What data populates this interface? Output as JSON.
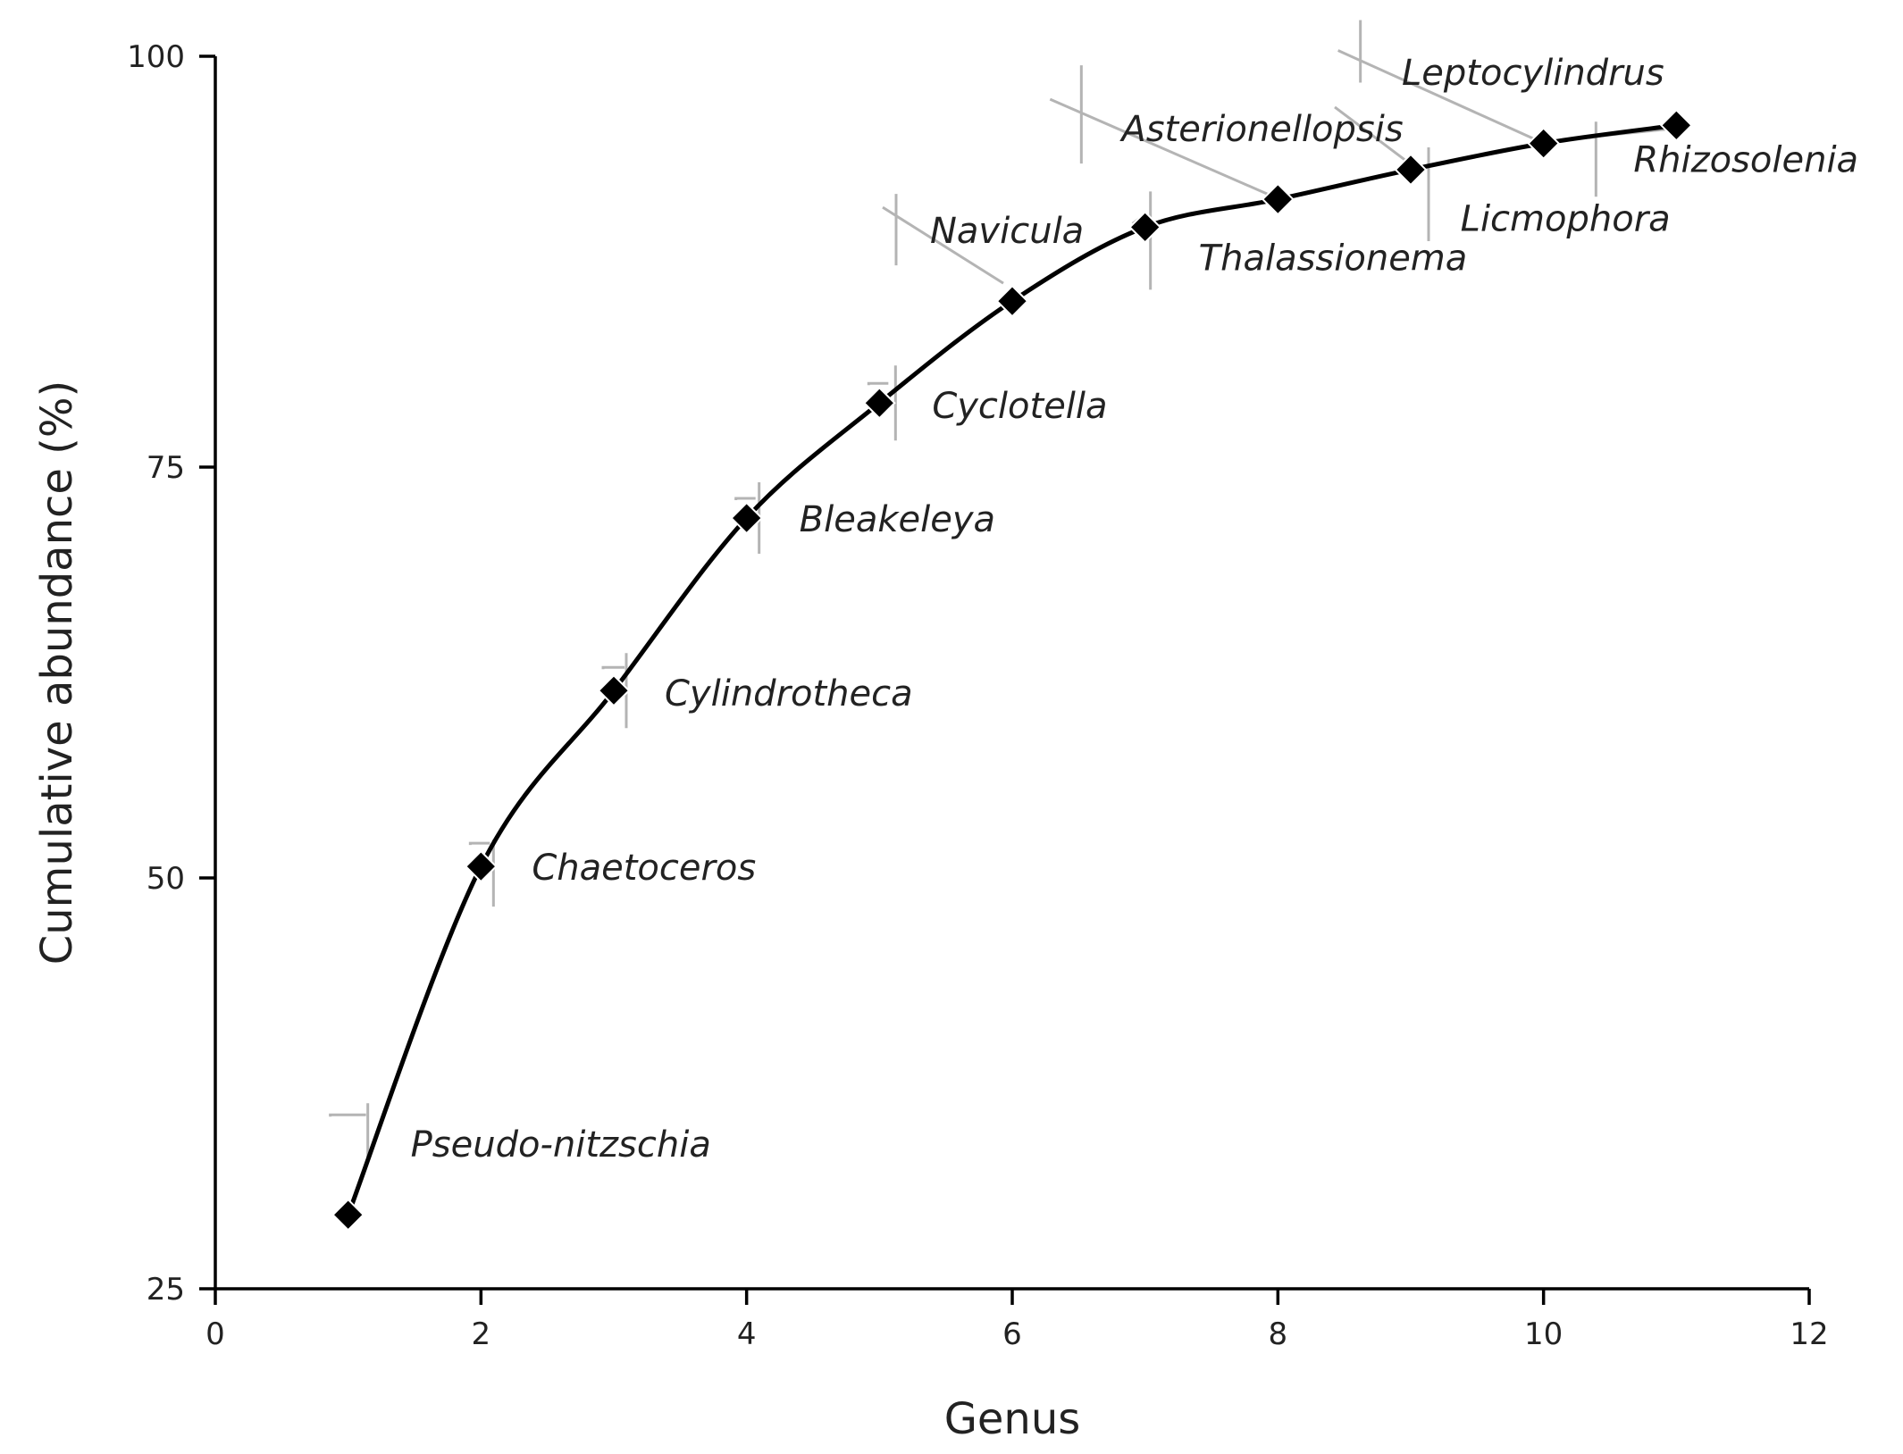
{
  "chart_data": {
    "type": "line",
    "xlabel": "Genus",
    "ylabel": "Cumulative abundance (%)",
    "xlim": [
      0,
      12
    ],
    "ylim": [
      25,
      100
    ],
    "xticks": [
      0,
      2,
      4,
      6,
      8,
      10,
      12
    ],
    "yticks": [
      25,
      50,
      75,
      100
    ],
    "smoothed_line": true,
    "marker": "diamond",
    "color": "#000000",
    "label_color": "#222222",
    "leader_color": "#b4b4b4",
    "x": [
      1,
      2,
      3,
      4,
      5,
      6,
      7,
      8,
      9,
      10,
      11
    ],
    "y": [
      29.5,
      50.7,
      61.4,
      71.9,
      78.9,
      85.1,
      89.6,
      91.3,
      93.1,
      94.7,
      95.8
    ],
    "labels": [
      "Pseudo-nitzschia",
      "Chaetoceros",
      "Cylindrotheca",
      "Bleakeleya",
      "Cyclotella",
      "Navicula",
      "Thalassionema",
      "Asterionellopsis",
      "Leptocylindrus",
      "Licmophora",
      "Rhizosolenia"
    ],
    "grid": false,
    "legend": "none"
  }
}
